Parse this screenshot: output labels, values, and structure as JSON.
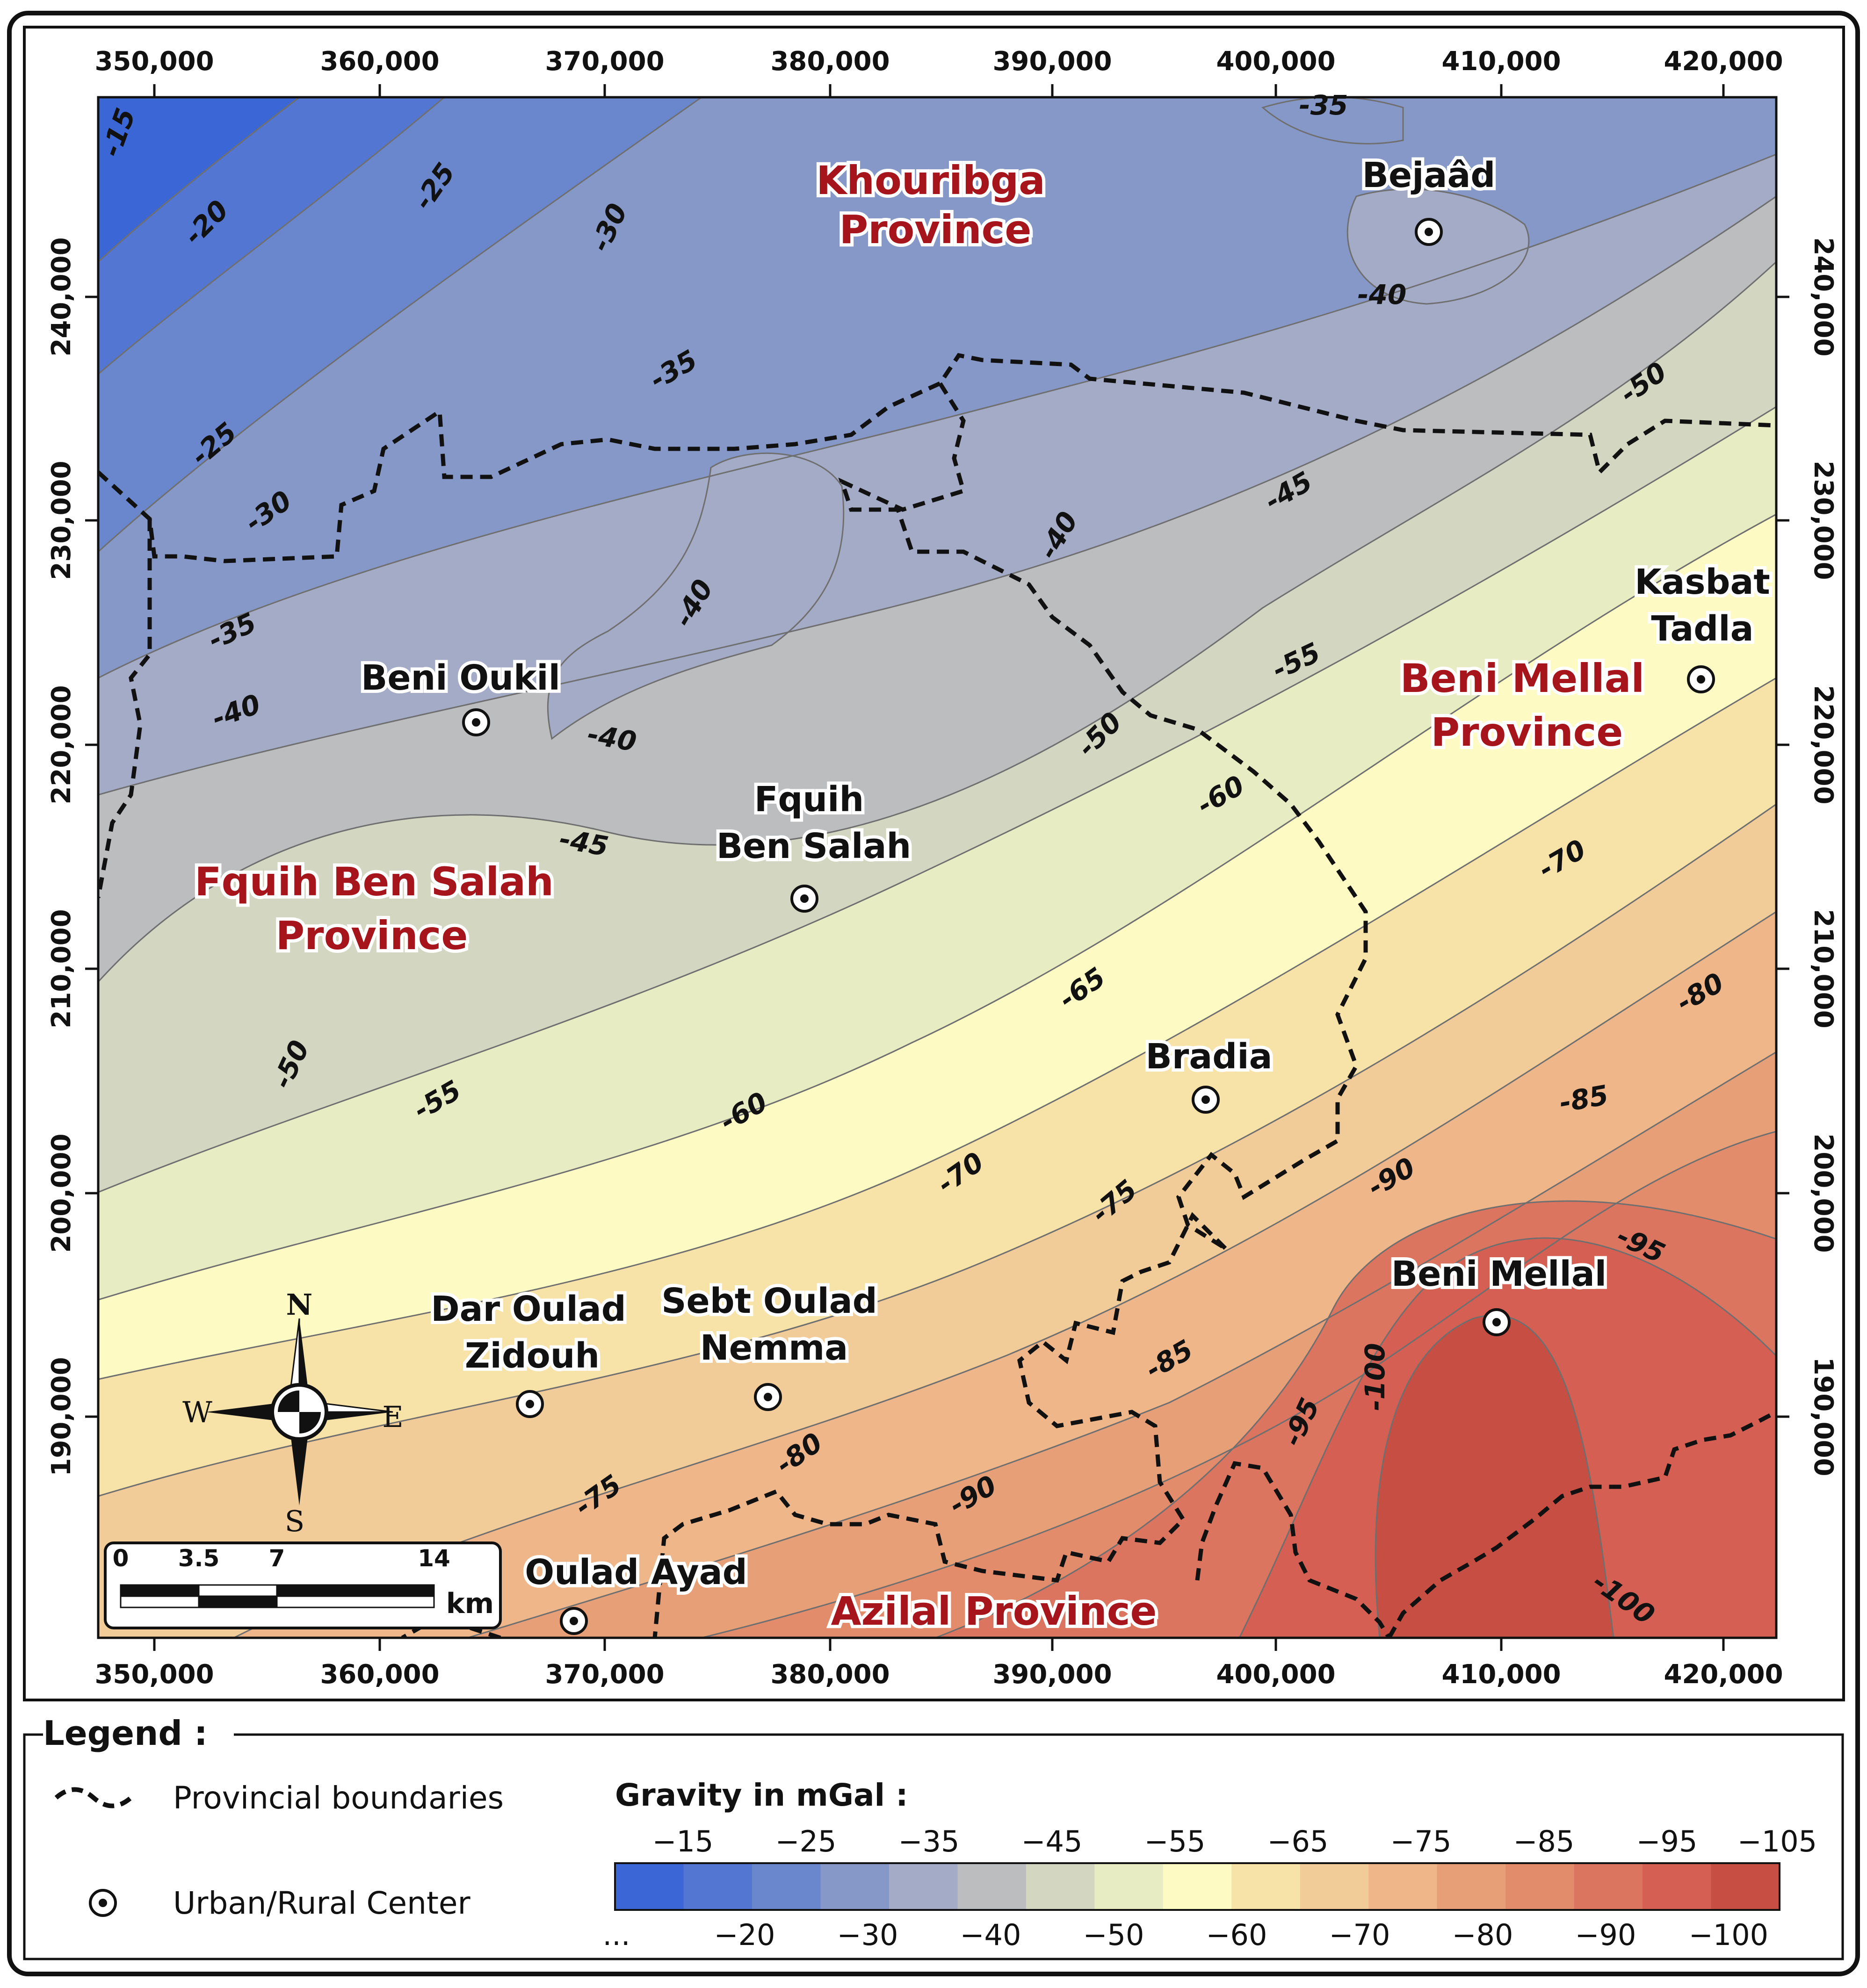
{
  "map": {
    "x_ticks": [
      "350,000",
      "360,000",
      "370,000",
      "380,000",
      "390,000",
      "400,000",
      "410,000",
      "420,000"
    ],
    "y_ticks": [
      "240,000",
      "230,000",
      "220,000",
      "210,000",
      "200,000",
      "190,000"
    ],
    "provinces": [
      {
        "id": "khouribga",
        "lines": [
          "Khouribga",
          "Province"
        ]
      },
      {
        "id": "beni-mellal",
        "lines": [
          "Beni Mellal",
          "Province"
        ]
      },
      {
        "id": "fquih-ben-salah",
        "lines": [
          "Fquih Ben Salah",
          "Province"
        ]
      },
      {
        "id": "azilal",
        "lines": [
          "Azilal Province"
        ]
      }
    ],
    "centers": [
      {
        "id": "bejaad",
        "lines": [
          "Bejaâd"
        ]
      },
      {
        "id": "kasbat-tadla",
        "lines": [
          "Kasbat",
          "Tadla"
        ]
      },
      {
        "id": "beni-oukil",
        "lines": [
          "Beni Oukil"
        ]
      },
      {
        "id": "fquih-ben-salah",
        "lines": [
          "Fquih",
          "Ben Salah"
        ]
      },
      {
        "id": "bradia",
        "lines": [
          "Bradia"
        ]
      },
      {
        "id": "beni-mellal",
        "lines": [
          "Beni Mellal"
        ]
      },
      {
        "id": "dar-oulad-zidouh",
        "lines": [
          "Dar Oulad",
          "Zidouh"
        ]
      },
      {
        "id": "sebt-oulad-nemma",
        "lines": [
          "Sebt Oulad",
          "Nemma"
        ]
      },
      {
        "id": "oulad-ayad",
        "lines": [
          "Oulad Ayad"
        ]
      }
    ],
    "contour_labels": [
      "-15",
      "-20",
      "-25",
      "-30",
      "-35",
      "-40",
      "-45",
      "-50",
      "-55",
      "-60",
      "-65",
      "-70",
      "-75",
      "-80",
      "-85",
      "-90",
      "-95",
      "-100"
    ],
    "contour_label_instances": [
      "-15",
      "-20",
      "-25",
      "-30",
      "-35",
      "-25",
      "-30",
      "-35",
      "-40",
      "-35",
      "-40",
      "-40",
      "-40",
      "-40",
      "-45",
      "-45",
      "-50",
      "-50",
      "-50",
      "-55",
      "-55",
      "-60",
      "-60",
      "-65",
      "-70",
      "-70",
      "-75",
      "-75",
      "-80",
      "-80",
      "-85",
      "-85",
      "-90",
      "-90",
      "-95",
      "-95",
      "-100",
      "-100"
    ],
    "compass": {
      "n": "N",
      "s": "S",
      "e": "E",
      "w": "W"
    },
    "scale_bar": {
      "ticks": [
        "0",
        "3.5",
        "7",
        "14"
      ],
      "unit": "km"
    }
  },
  "legend": {
    "title": "Legend :",
    "boundary_label": "Provincial boundaries",
    "center_label": "Urban/Rural Center",
    "gravity_title": "Gravity in mGal :",
    "top_ticks": [
      "−15",
      "−25",
      "−35",
      "−45",
      "−55",
      "−65",
      "−75",
      "−85",
      "−95",
      "−105"
    ],
    "bottom_ticks": [
      "−20",
      "−30",
      "−40",
      "−50",
      "−60",
      "−70",
      "−80",
      "−90",
      "−100"
    ],
    "ellipsis": "...",
    "colors": [
      "#3a66d6",
      "#5276d1",
      "#6a86cc",
      "#8698c8",
      "#a3abc6",
      "#bcbdbf",
      "#d3d6c1",
      "#e8ecc3",
      "#fdfac3",
      "#f7e2a8",
      "#f2cc98",
      "#eeb689",
      "#e79f78",
      "#e38c6c",
      "#db7560",
      "#d45f52",
      "#c64e43"
    ]
  }
}
